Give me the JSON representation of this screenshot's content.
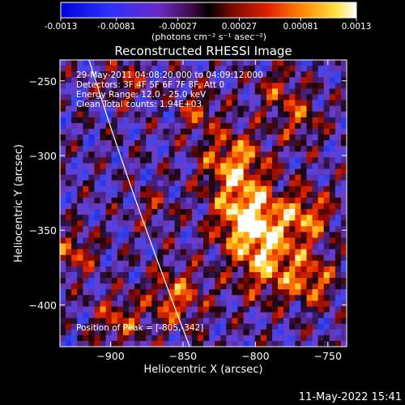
{
  "colorbar": {
    "tick_labels": [
      "-0.0013",
      "-0.00081",
      "-0.00027",
      "0.00027",
      "0.00081",
      "0.0013"
    ],
    "tick_values": [
      -0.0013,
      -0.00081,
      -0.00027,
      0.00027,
      0.00081,
      0.0013
    ],
    "range": [
      -0.0013,
      0.0013
    ],
    "units_label": "(photons cm⁻² s⁻¹ asec⁻²)"
  },
  "chart_data": {
    "type": "heatmap",
    "title": "Reconstructed RHESSI Image",
    "xlabel": "Heliocentric X (arcsec)",
    "ylabel": "Heliocentric Y (arcsec)",
    "xlim": [
      -935,
      -737
    ],
    "ylim": [
      -428,
      -236
    ],
    "x_ticks": [
      -900,
      -850,
      -800,
      -750
    ],
    "y_ticks": [
      -250,
      -300,
      -350,
      -400
    ],
    "x_tick_labels": [
      "−900",
      "−850",
      "−800",
      "−750"
    ],
    "y_tick_labels": [
      "−250",
      "−300",
      "−350",
      "−400"
    ],
    "annotations": [
      "29-May-2011 04:08:20.000 to 04:09:12.000",
      "Detectors: 3F 4F 5F 6F 7F 8F, Att 0",
      "Energy Range: 12.0 - 25.0 keV",
      "Clean     Total counts: 1.94E+03"
    ],
    "peak_label": "Position of Peak = [-805,-342]",
    "peak": [
      -805,
      -342
    ],
    "colormap": "blue-purple-red-yellow-white",
    "grid": false
  },
  "footer": {
    "timestamp": "11-May-2022 15:41"
  }
}
